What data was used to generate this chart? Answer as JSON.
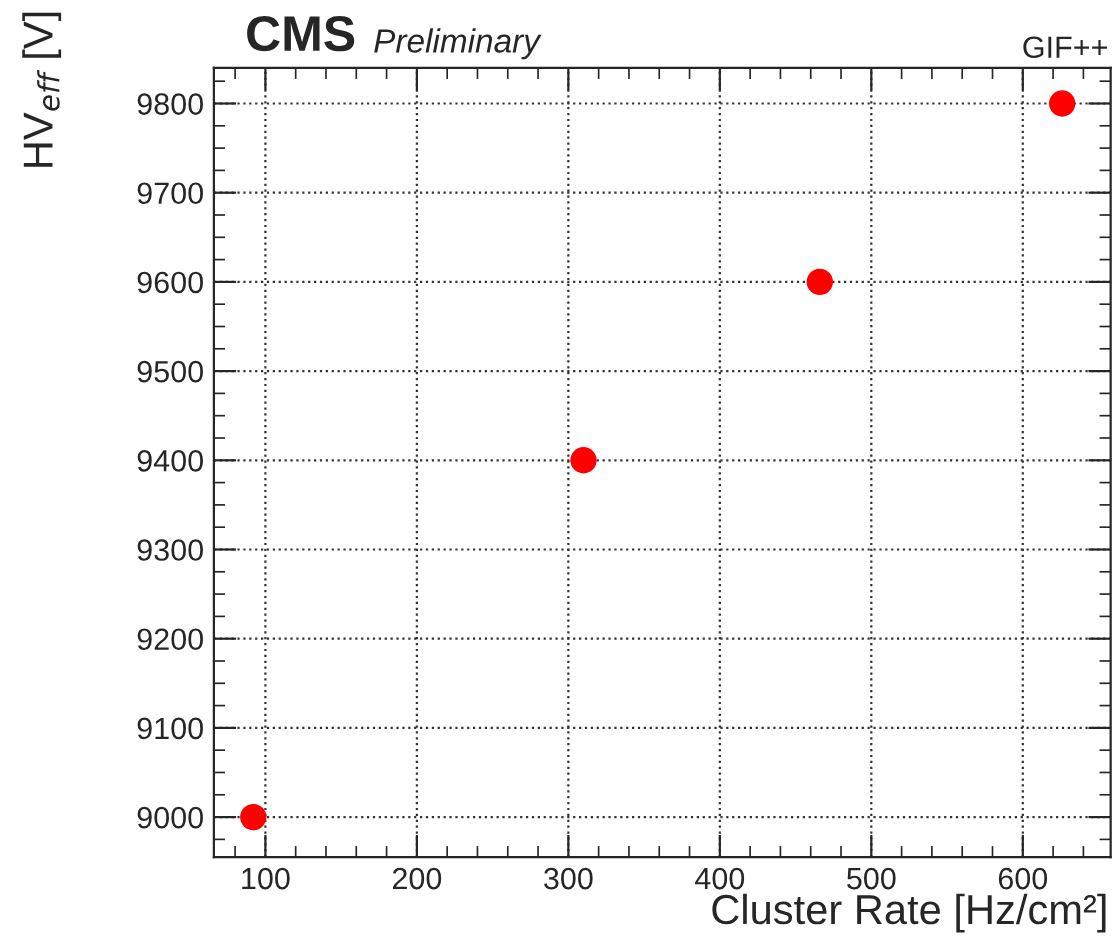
{
  "chart_data": {
    "type": "scatter",
    "title": "CMS",
    "subtitle": "Preliminary",
    "annotations": [
      "GIF++"
    ],
    "xlabel": "Cluster Rate [Hz/cm²]",
    "ylabel": "HV$_{eff}$ [V]",
    "x": [
      92,
      310,
      466,
      626
    ],
    "series": [
      {
        "color": "#ff0000",
        "values": [
          9000,
          9400,
          9600,
          9800
        ]
      }
    ],
    "xlim": [
      66,
      658
    ],
    "xticks": [
      100,
      200,
      300,
      400,
      500,
      600
    ],
    "ylim": [
      8955,
      9840
    ],
    "yticks": [
      9000,
      9100,
      9200,
      9300,
      9400,
      9500,
      9600,
      9700,
      9800
    ],
    "grid": true,
    "marker": "circle",
    "legend": false
  }
}
